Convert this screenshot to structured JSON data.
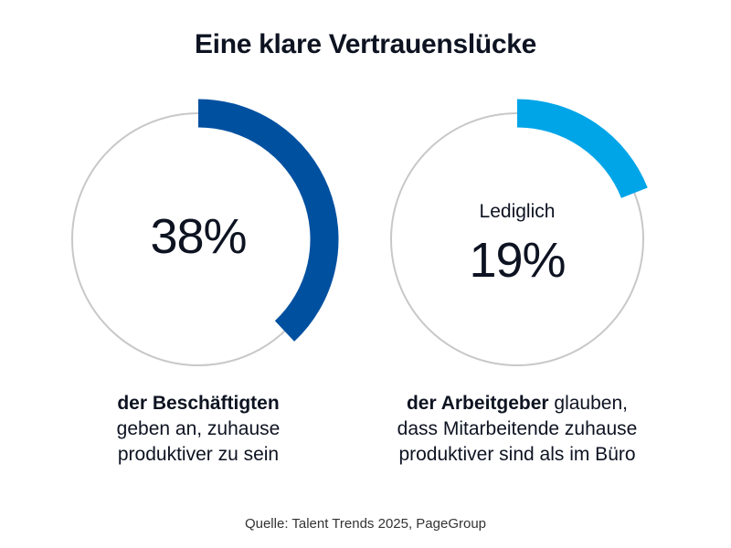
{
  "title": "Eine klare Vertrauenslücke",
  "chart_data": [
    {
      "type": "pie",
      "value": 38,
      "max": 100,
      "label": "38%",
      "color": "#0050a0",
      "track_color": "#c8c8c8",
      "caption_bold": "der Beschäftigten",
      "caption_rest": [
        "geben an, zuhause",
        "produktiver zu sein"
      ]
    },
    {
      "type": "pie",
      "value": 19,
      "max": 100,
      "prefix": "Lediglich",
      "label": "19%",
      "color": "#00a5e8",
      "track_color": "#c8c8c8",
      "caption_bold": "der Arbeitgeber",
      "caption_rest_first": " glauben,",
      "caption_rest": [
        "dass Mitarbeitende zuhause",
        "produktiver sind als im Büro"
      ]
    }
  ],
  "source": "Quelle: Talent Trends 2025, PageGroup"
}
